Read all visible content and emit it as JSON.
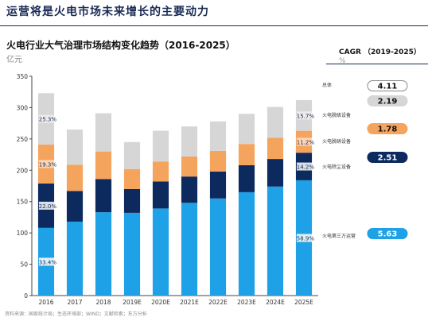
{
  "headline": "运营将是火电市场未来增长的主要动力",
  "chart_title": "火电行业大气治理市场结构变化趋势（2016-2025）",
  "unit": "亿元",
  "cagr_title": "CAGR （2019-2025）",
  "cagr_unit": "%",
  "source": "资料来源：国家统计局；生态环境部；WIND；文献检索；东方分析",
  "colors": {
    "operation": "#1ea1e6",
    "dust": "#0d2a5e",
    "denox": "#f5a45e",
    "desulf": "#d6d6d6"
  },
  "chart_data": {
    "type": "bar",
    "stacked": true,
    "categories": [
      "2016",
      "2017",
      "2018",
      "2019E",
      "2020E",
      "2021E",
      "2022E",
      "2023E",
      "2024E",
      "2025E"
    ],
    "ylim": [
      0,
      350
    ],
    "yticks": [
      0,
      50,
      100,
      150,
      200,
      250,
      300,
      350
    ],
    "grid": false,
    "series": [
      {
        "name": "火电第三方运营",
        "key": "operation",
        "values": [
          108,
          118,
          133,
          132,
          139,
          148,
          155,
          165,
          174,
          184
        ]
      },
      {
        "name": "火电除尘设备",
        "key": "dust",
        "values": [
          71,
          49,
          53,
          38,
          43,
          42,
          43,
          43,
          44,
          44
        ]
      },
      {
        "name": "火电脱硝设备",
        "key": "denox",
        "values": [
          62,
          42,
          44,
          32,
          32,
          32,
          33,
          34,
          34,
          35
        ]
      },
      {
        "name": "火电脱硫设备",
        "key": "desulf",
        "values": [
          82,
          56,
          61,
          43,
          49,
          48,
          47,
          48,
          49,
          49
        ]
      }
    ],
    "segment_labels": [
      {
        "category": "2016",
        "series": "desulf",
        "text": "25.3%"
      },
      {
        "category": "2016",
        "series": "denox",
        "text": "19.3%"
      },
      {
        "category": "2016",
        "series": "dust",
        "text": "22.0%"
      },
      {
        "category": "2016",
        "series": "operation",
        "text": "33.4%"
      },
      {
        "category": "2025E",
        "series": "desulf",
        "text": "15.7%"
      },
      {
        "category": "2025E",
        "series": "denox",
        "text": "11.2%"
      },
      {
        "category": "2025E",
        "series": "dust",
        "text": "14.2%"
      },
      {
        "category": "2025E",
        "series": "operation",
        "text": "58.9%"
      }
    ],
    "cagr": [
      {
        "label": "总体",
        "value": "4.11",
        "style": "total"
      },
      {
        "label": "火电脱硫设备",
        "value": "2.19",
        "style": "desulf"
      },
      {
        "label": "火电脱硝设备",
        "value": "1.78",
        "style": "denox"
      },
      {
        "label": "火电除尘设备",
        "value": "2.51",
        "style": "dust"
      },
      {
        "label": "火电第三方运营",
        "value": "5.63",
        "style": "operation"
      }
    ]
  }
}
